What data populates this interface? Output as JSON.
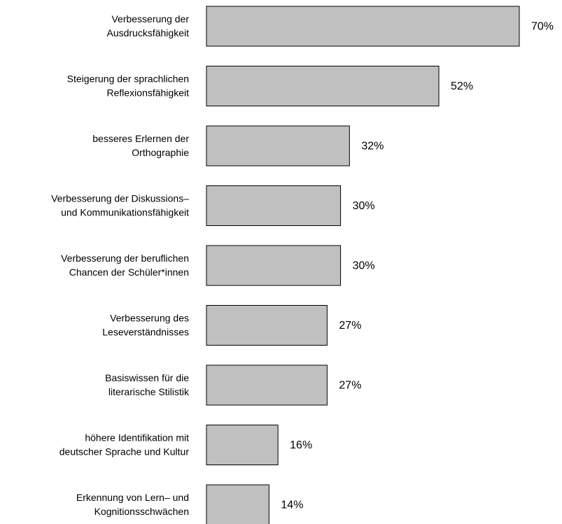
{
  "chart_data": {
    "type": "bar",
    "orientation": "horizontal",
    "categories": [
      [
        "Verbesserung der",
        "Ausdrucksfähigkeit"
      ],
      [
        "Steigerung der sprachlichen",
        "Reflexionsfähigkeit"
      ],
      [
        "besseres Erlernen der",
        "Orthographie"
      ],
      [
        "Verbesserung der Diskussions–",
        "und Kommunikationsfähigkeit"
      ],
      [
        "Verbesserung der beruflichen",
        "Chancen der Schüler*innen"
      ],
      [
        "Verbesserung des",
        "Leseverständnisses"
      ],
      [
        "Basiswissen für die",
        "literarische Stilistik"
      ],
      [
        "höhere Identifikation mit",
        "deutscher Sprache und Kultur"
      ],
      [
        "Erkennung von Lern– und",
        "Kognitionsschwächen"
      ]
    ],
    "values": [
      70,
      52,
      32,
      30,
      30,
      27,
      27,
      16,
      14
    ],
    "value_labels": [
      "70%",
      "52%",
      "32%",
      "30%",
      "30%",
      "27%",
      "27%",
      "16%",
      "14%"
    ],
    "color": "#c0c0c0"
  }
}
